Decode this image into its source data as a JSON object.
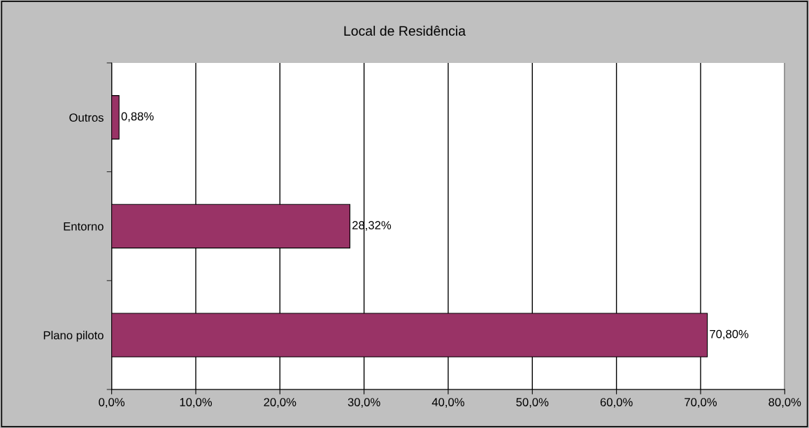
{
  "chart_data": {
    "type": "bar",
    "orientation": "horizontal",
    "title": "Local de Residência",
    "categories": [
      "Outros",
      "Entorno",
      "Plano piloto"
    ],
    "values": [
      0.88,
      28.32,
      70.8
    ],
    "color": "#993366",
    "value_labels": [
      "0,88%",
      "28,32%",
      "70,80%"
    ],
    "xlim": [
      0,
      80
    ],
    "xticks": [
      {
        "value": 0,
        "label": "0,0%"
      },
      {
        "value": 10,
        "label": "10,0%"
      },
      {
        "value": 20,
        "label": "20,0%"
      },
      {
        "value": 30,
        "label": "30,0%"
      },
      {
        "value": 40,
        "label": "40,0%"
      },
      {
        "value": 50,
        "label": "50,0%"
      },
      {
        "value": 60,
        "label": "60,0%"
      },
      {
        "value": 70,
        "label": "70,0%"
      },
      {
        "value": 80,
        "label": "80,0%"
      }
    ],
    "grid": "x",
    "legend": false
  }
}
